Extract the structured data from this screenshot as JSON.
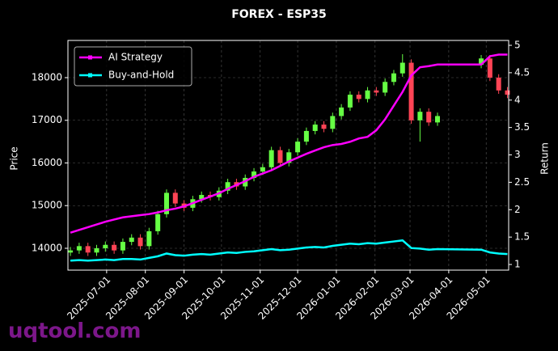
{
  "chart_data": {
    "type": "candlestick",
    "title": "FOREX - ESP35",
    "ylabel": "Price",
    "y2label": "Return",
    "watermark": "uqtool.com",
    "x": [
      "2025-06-02",
      "2025-06-09",
      "2025-06-16",
      "2025-06-23",
      "2025-06-30",
      "2025-07-07",
      "2025-07-14",
      "2025-07-21",
      "2025-07-28",
      "2025-08-04",
      "2025-08-11",
      "2025-08-18",
      "2025-08-25",
      "2025-09-01",
      "2025-09-08",
      "2025-09-15",
      "2025-09-22",
      "2025-09-29",
      "2025-10-06",
      "2025-10-13",
      "2025-10-20",
      "2025-10-27",
      "2025-11-03",
      "2025-11-10",
      "2025-11-17",
      "2025-11-24",
      "2025-12-01",
      "2025-12-08",
      "2025-12-15",
      "2025-12-22",
      "2025-12-29",
      "2026-01-05",
      "2026-01-12",
      "2026-01-19",
      "2026-01-26",
      "2026-02-02",
      "2026-02-09",
      "2026-02-16",
      "2026-02-23",
      "2026-03-02",
      "2026-03-09",
      "2026-03-16",
      "2026-03-23",
      "2026-04-27",
      "2026-05-04",
      "2026-05-11",
      "2026-05-18"
    ],
    "open": [
      13900,
      13950,
      14050,
      13900,
      14000,
      14080,
      13950,
      14150,
      14250,
      14050,
      14400,
      14800,
      15300,
      15050,
      14950,
      15150,
      15250,
      15200,
      15350,
      15550,
      15450,
      15650,
      15800,
      15900,
      16300,
      16000,
      16250,
      16500,
      16750,
      16900,
      16800,
      17100,
      17300,
      17600,
      17500,
      17700,
      17650,
      17900,
      18100,
      18350,
      17000,
      17200,
      16950,
      18300,
      18450,
      18000,
      17700
    ],
    "high": [
      14030,
      14130,
      14130,
      14080,
      14160,
      14160,
      14230,
      14330,
      14330,
      14480,
      14880,
      15380,
      15380,
      15130,
      15230,
      15330,
      15330,
      15430,
      15630,
      15630,
      15730,
      15880,
      15980,
      16380,
      16380,
      16330,
      16580,
      16830,
      16980,
      16980,
      17180,
      17380,
      17680,
      17680,
      17780,
      17780,
      17980,
      18180,
      18550,
      18430,
      17280,
      17280,
      17180,
      18530,
      18530,
      18080,
      17780
    ],
    "low": [
      13820,
      13870,
      13820,
      13820,
      13920,
      13870,
      13870,
      14070,
      13970,
      13970,
      14320,
      14720,
      14970,
      14870,
      14870,
      15070,
      15120,
      15120,
      15270,
      15370,
      15370,
      15570,
      15720,
      15820,
      15920,
      15920,
      16170,
      16420,
      16670,
      16720,
      16720,
      17020,
      17220,
      17420,
      17420,
      17570,
      17570,
      17820,
      18020,
      16920,
      16500,
      16870,
      16870,
      18220,
      17920,
      17620,
      17520
    ],
    "close": [
      13950,
      14050,
      13900,
      14000,
      14080,
      13950,
      14150,
      14250,
      14050,
      14400,
      14800,
      15300,
      15050,
      14950,
      15150,
      15250,
      15200,
      15350,
      15550,
      15450,
      15650,
      15800,
      15900,
      16300,
      16000,
      16250,
      16500,
      16750,
      16900,
      16800,
      17100,
      17300,
      17600,
      17500,
      17700,
      17650,
      17900,
      18100,
      18350,
      17000,
      17200,
      16950,
      17100,
      18450,
      18000,
      17700,
      17600
    ],
    "up_color": "#66ff44",
    "down_color": "#ff4455",
    "series": [
      {
        "name": "AI Strategy",
        "color": "#ff00ff",
        "axis": "y2",
        "values": [
          1.58,
          1.63,
          1.68,
          1.73,
          1.78,
          1.82,
          1.86,
          1.88,
          1.9,
          1.92,
          1.95,
          1.99,
          2.02,
          2.06,
          2.12,
          2.18,
          2.24,
          2.3,
          2.38,
          2.45,
          2.52,
          2.6,
          2.66,
          2.72,
          2.8,
          2.88,
          2.95,
          3.02,
          3.08,
          3.14,
          3.18,
          3.2,
          3.24,
          3.3,
          3.33,
          3.45,
          3.65,
          3.9,
          4.15,
          4.45,
          4.6,
          4.62,
          4.65,
          4.65,
          4.8,
          4.83,
          4.83
        ]
      },
      {
        "name": "Buy-and-Hold",
        "color": "#00ffff",
        "axis": "y2",
        "values": [
          1.07,
          1.08,
          1.07,
          1.08,
          1.09,
          1.08,
          1.1,
          1.1,
          1.09,
          1.12,
          1.15,
          1.2,
          1.17,
          1.16,
          1.18,
          1.19,
          1.18,
          1.2,
          1.22,
          1.21,
          1.23,
          1.24,
          1.26,
          1.28,
          1.26,
          1.27,
          1.29,
          1.31,
          1.32,
          1.31,
          1.34,
          1.36,
          1.38,
          1.37,
          1.39,
          1.38,
          1.4,
          1.42,
          1.44,
          1.3,
          1.29,
          1.27,
          1.28,
          1.27,
          1.22,
          1.2,
          1.19
        ]
      }
    ],
    "xlim": [
      "2025-05-31",
      "2026-05-19"
    ],
    "xticks": [
      "2025-07-01",
      "2025-08-01",
      "2025-09-01",
      "2025-10-01",
      "2025-11-01",
      "2025-12-01",
      "2026-01-01",
      "2026-02-01",
      "2026-03-01",
      "2026-04-01",
      "2026-05-01"
    ],
    "ylim": [
      13488,
      18872
    ],
    "yticks": [
      14000,
      15000,
      16000,
      17000,
      18000
    ],
    "y2lim": [
      0.897,
      5.089
    ],
    "y2ticks": [
      1.0,
      1.5,
      2.0,
      2.5,
      3.0,
      3.5,
      4.0,
      4.5,
      5.0
    ],
    "grid": true,
    "legend": "upper left"
  }
}
